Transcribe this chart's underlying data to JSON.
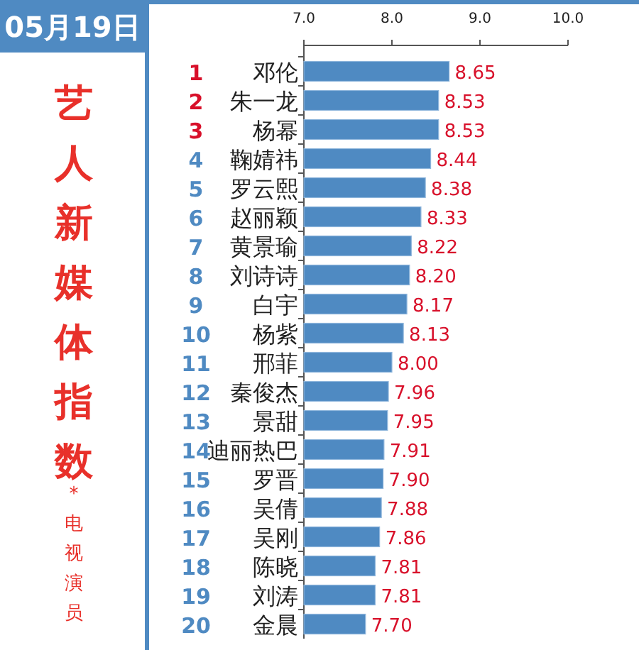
{
  "chart_data": {
    "type": "bar",
    "orientation": "horizontal",
    "title": "05月19日",
    "subtitle": "艺人新媒体指数",
    "annotations": [
      "*电视演员",
      "1",
      "2",
      "3",
      "4",
      "5",
      "6",
      "7",
      "8",
      "9",
      "10",
      "11",
      "12",
      "13",
      "14",
      "15",
      "16",
      "17",
      "18",
      "19",
      "20"
    ],
    "categories": [
      "邓伦",
      "朱一龙",
      "杨幂",
      "鞠婧祎",
      "罗云熙",
      "赵丽颖",
      "黄景瑜",
      "刘诗诗",
      "白宇",
      "杨紫",
      "邢菲",
      "秦俊杰",
      "景甜",
      "迪丽热巴",
      "罗晋",
      "吴倩",
      "吴刚",
      "陈晓",
      "刘涛",
      "金晨"
    ],
    "values": [
      8.65,
      8.53,
      8.53,
      8.44,
      8.38,
      8.33,
      8.22,
      8.2,
      8.17,
      8.13,
      8.0,
      7.96,
      7.95,
      7.91,
      7.9,
      7.88,
      7.86,
      7.81,
      7.81,
      7.7
    ],
    "value_labels": [
      "8.65",
      "8.53",
      "8.53",
      "8.44",
      "8.38",
      "8.33",
      "8.22",
      "8.20",
      "8.17",
      "8.13",
      "8.00",
      "7.96",
      "7.95",
      "7.91",
      "7.90",
      "7.88",
      "7.86",
      "7.81",
      "7.81",
      "7.70"
    ],
    "color": "#4f8ac2",
    "xlim": [
      7,
      10
    ],
    "xticks": [
      {
        "value": 7,
        "label": "7.0"
      },
      {
        "value": 8,
        "label": "8.0"
      },
      {
        "value": 9,
        "label": "9.0"
      },
      {
        "value": 10,
        "label": "10.0"
      }
    ],
    "grid": false
  }
}
